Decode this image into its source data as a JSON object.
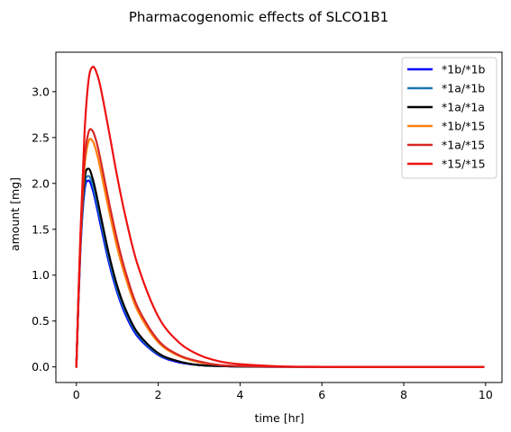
{
  "chart_data": {
    "type": "line",
    "title": "Pharmacogenomic effects of SLCO1B1",
    "xlabel": "time [hr]",
    "ylabel": "amount [mg]",
    "xlim": [
      -0.5,
      10.4
    ],
    "ylim": [
      -0.17,
      3.43
    ],
    "x_ticks": [
      0,
      2,
      4,
      6,
      8,
      10
    ],
    "x_tick_labels": [
      "0",
      "2",
      "4",
      "6",
      "8",
      "10"
    ],
    "y_ticks": [
      0.0,
      0.5,
      1.0,
      1.5,
      2.0,
      2.5,
      3.0
    ],
    "y_tick_labels": [
      "0.0",
      "0.5",
      "1.0",
      "1.5",
      "2.0",
      "2.5",
      "3.0"
    ],
    "grid": false,
    "legend_position": "top-right",
    "x": [
      0,
      0.1,
      0.2,
      0.3,
      0.4,
      0.5,
      0.6,
      0.8,
      1.0,
      1.2,
      1.5,
      2.0,
      2.5,
      3.0,
      3.5,
      4.0,
      5.0,
      6.0,
      7.0,
      8.0,
      9.0,
      9.95
    ],
    "series": [
      {
        "name": "*1b/*1b",
        "color": "#0000ff",
        "values": [
          0,
          1.27,
          1.92,
          2.03,
          1.93,
          1.74,
          1.53,
          1.13,
          0.81,
          0.57,
          0.33,
          0.13,
          0.05,
          0.02,
          0.01,
          0.004,
          0.001,
          0,
          0,
          0,
          0,
          0
        ]
      },
      {
        "name": "*1a/*1b",
        "color": "#1f77b4",
        "values": [
          0,
          1.31,
          1.97,
          2.08,
          1.98,
          1.79,
          1.58,
          1.17,
          0.84,
          0.6,
          0.35,
          0.14,
          0.06,
          0.02,
          0.01,
          0.004,
          0.001,
          0,
          0,
          0,
          0,
          0
        ]
      },
      {
        "name": "*1a/*1a",
        "color": "#000000",
        "values": [
          0,
          1.35,
          2.04,
          2.16,
          2.05,
          1.86,
          1.64,
          1.22,
          0.88,
          0.63,
          0.37,
          0.15,
          0.06,
          0.02,
          0.01,
          0.004,
          0.001,
          0,
          0,
          0,
          0,
          0
        ]
      },
      {
        "name": "*1b/*15",
        "color": "#ff7f0e",
        "values": [
          0,
          1.36,
          2.17,
          2.46,
          2.46,
          2.33,
          2.13,
          1.7,
          1.3,
          0.98,
          0.61,
          0.27,
          0.12,
          0.05,
          0.02,
          0.01,
          0.002,
          0,
          0,
          0,
          0,
          0
        ]
      },
      {
        "name": "*1a/*15",
        "color": "#d62728",
        "values": [
          0,
          1.4,
          2.25,
          2.56,
          2.57,
          2.44,
          2.24,
          1.79,
          1.38,
          1.04,
          0.65,
          0.29,
          0.13,
          0.06,
          0.02,
          0.01,
          0.002,
          0,
          0,
          0,
          0,
          0
        ]
      },
      {
        "name": "*15/*15",
        "color": "#ee1111",
        "values": [
          0,
          1.45,
          2.55,
          3.13,
          3.27,
          3.2,
          3.03,
          2.56,
          2.07,
          1.64,
          1.11,
          0.55,
          0.27,
          0.13,
          0.06,
          0.03,
          0.006,
          0.001,
          0,
          0,
          0,
          0
        ]
      }
    ]
  }
}
